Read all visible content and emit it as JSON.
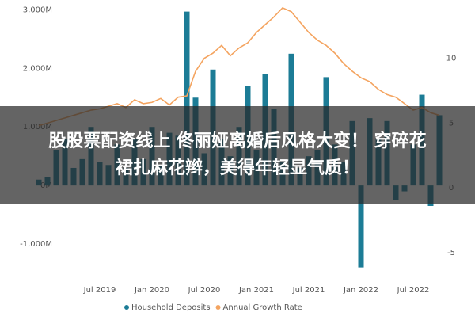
{
  "chart_data": {
    "type": "bar_line",
    "categories": [
      null,
      null,
      null,
      null,
      null,
      null,
      null,
      "Jul 2019",
      null,
      null,
      null,
      null,
      null,
      "Jan 2020",
      null,
      null,
      null,
      null,
      null,
      "Jul 2020",
      null,
      null,
      null,
      null,
      null,
      "Jan 2021",
      null,
      null,
      null,
      null,
      null,
      "Jul 2021",
      null,
      null,
      null,
      null,
      null,
      "Jan 2022",
      null,
      null,
      null,
      null,
      null,
      "Jul 2022",
      null,
      null,
      null
    ],
    "series": [
      {
        "name": "Household Deposits",
        "color": "#1c7c96",
        "kind": "bar",
        "values": [
          100,
          150,
          600,
          800,
          300,
          450,
          1000,
          400,
          350,
          700,
          300,
          800,
          450,
          1000,
          350,
          900,
          850,
          2970,
          1500,
          550,
          1980,
          800,
          500,
          1000,
          1700,
          600,
          1900,
          1300,
          400,
          2250,
          300,
          500,
          600,
          1850,
          700,
          400,
          1100,
          -1400,
          1150,
          800,
          1100,
          -250,
          -100,
          700,
          1550,
          -350,
          1200
        ]
      },
      {
        "name": "Annual Growth Rate",
        "color": "#f4a460",
        "kind": "line",
        "axis": "y2",
        "values": [
          4.8,
          5,
          5.2,
          5.4,
          5.6,
          5.8,
          6,
          6.1,
          6.3,
          6.5,
          6.2,
          6.8,
          6.5,
          6.6,
          6.9,
          6.4,
          7,
          7.1,
          9,
          10,
          10.4,
          11,
          10.2,
          10.8,
          11.2,
          12,
          12.6,
          13.2,
          13.9,
          13.6,
          12.8,
          12,
          11.4,
          11,
          10.4,
          9.6,
          9,
          8.5,
          8.2,
          7.6,
          7.2,
          7,
          6.5,
          6,
          6.2,
          5.8,
          5.6
        ]
      }
    ],
    "ylim": [
      -1500,
      3100
    ],
    "yticks": [
      {
        "value": -1000,
        "label": "-1,000M"
      },
      {
        "value": 0,
        "label": "0M"
      },
      {
        "value": 1000,
        "label": "1,000M"
      },
      {
        "value": 2000,
        "label": "2,000M"
      },
      {
        "value": 3000,
        "label": "3,000M"
      }
    ],
    "y2lim": [
      -6.6,
      14.2
    ],
    "y2ticks": [
      -5,
      0,
      5,
      10
    ],
    "legend": "bottom"
  },
  "banner": {
    "lines": [
      "股股票配资线上 佟丽娅离婚后风格大变！ 穿碎花",
      "裙扎麻花辫，美得年轻显气质！"
    ]
  }
}
